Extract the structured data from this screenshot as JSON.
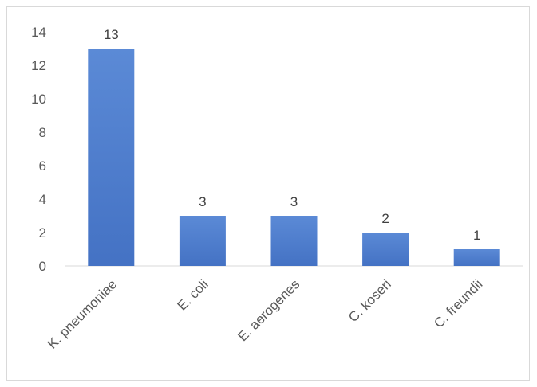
{
  "chart_data": {
    "type": "bar",
    "categories": [
      "K. pneumoniae",
      "E. coli",
      "E. aerogenes",
      "C. koseri",
      "C. freundii"
    ],
    "values": [
      13,
      3,
      3,
      2,
      1
    ],
    "data_labels": [
      "13",
      "3",
      "3",
      "2",
      "1"
    ],
    "y_ticks": [
      "0",
      "2",
      "4",
      "6",
      "8",
      "10",
      "12",
      "14"
    ],
    "ylim": [
      0,
      14
    ],
    "grid": false,
    "bar_color": "#4472c4",
    "bar_color_light": "#5b8ad6",
    "title": "",
    "xlabel": "",
    "ylabel": ""
  }
}
